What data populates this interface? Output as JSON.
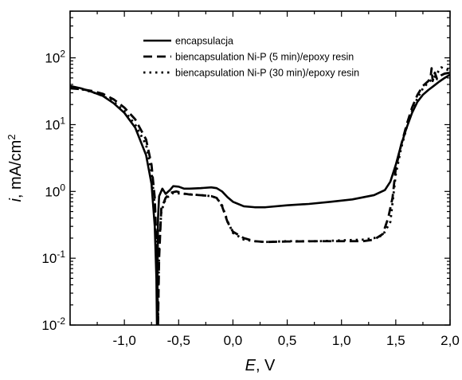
{
  "chart_data": {
    "type": "line",
    "title": "",
    "xlabel_var": "E",
    "xlabel_unit": ", V",
    "ylabel_var": "i",
    "ylabel_unit": ", mA/cm",
    "ylabel_sup": "2",
    "yscale": "log",
    "xlim": [
      -1.5,
      2.0
    ],
    "ylim": [
      0.01,
      500
    ],
    "grid": false,
    "legend_position": "top-center",
    "x_ticks": [
      {
        "value": -1.0,
        "label": "-1,0"
      },
      {
        "value": -0.5,
        "label": "-0,5"
      },
      {
        "value": 0.0,
        "label": "0,0"
      },
      {
        "value": 0.5,
        "label": "0,5"
      },
      {
        "value": 1.0,
        "label": "1,0"
      },
      {
        "value": 1.5,
        "label": "1,5"
      },
      {
        "value": 2.0,
        "label": "2,0"
      }
    ],
    "y_ticks": [
      {
        "value": 0.01,
        "exp": "-2"
      },
      {
        "value": 0.1,
        "exp": "-1"
      },
      {
        "value": 1,
        "exp": "0"
      },
      {
        "value": 10,
        "exp": "1"
      },
      {
        "value": 100,
        "exp": "2"
      }
    ],
    "series": [
      {
        "name": "encapsulacja",
        "style": "solid",
        "points": [
          [
            -1.5,
            38
          ],
          [
            -1.4,
            35
          ],
          [
            -1.3,
            31
          ],
          [
            -1.2,
            27
          ],
          [
            -1.1,
            21
          ],
          [
            -1.0,
            15
          ],
          [
            -0.9,
            9
          ],
          [
            -0.8,
            3.5
          ],
          [
            -0.75,
            1.3
          ],
          [
            -0.72,
            0.3
          ],
          [
            -0.705,
            0.05
          ],
          [
            -0.7,
            0.01
          ],
          [
            -0.695,
            0.05
          ],
          [
            -0.69,
            0.4
          ],
          [
            -0.68,
            0.85
          ],
          [
            -0.65,
            1.1
          ],
          [
            -0.62,
            0.92
          ],
          [
            -0.58,
            1.05
          ],
          [
            -0.55,
            1.2
          ],
          [
            -0.5,
            1.18
          ],
          [
            -0.45,
            1.1
          ],
          [
            -0.4,
            1.1
          ],
          [
            -0.3,
            1.12
          ],
          [
            -0.2,
            1.15
          ],
          [
            -0.15,
            1.12
          ],
          [
            -0.1,
            1.0
          ],
          [
            -0.05,
            0.82
          ],
          [
            0.0,
            0.7
          ],
          [
            0.1,
            0.6
          ],
          [
            0.2,
            0.58
          ],
          [
            0.3,
            0.58
          ],
          [
            0.5,
            0.62
          ],
          [
            0.7,
            0.65
          ],
          [
            0.9,
            0.7
          ],
          [
            1.1,
            0.76
          ],
          [
            1.3,
            0.88
          ],
          [
            1.4,
            1.05
          ],
          [
            1.45,
            1.4
          ],
          [
            1.5,
            2.5
          ],
          [
            1.55,
            5
          ],
          [
            1.6,
            9
          ],
          [
            1.65,
            15
          ],
          [
            1.7,
            22
          ],
          [
            1.75,
            28
          ],
          [
            1.8,
            33
          ],
          [
            1.85,
            38
          ],
          [
            1.9,
            44
          ],
          [
            1.95,
            50
          ],
          [
            2.0,
            56
          ]
        ]
      },
      {
        "name": "biencapsulation Ni-P (5 min)/epoxy resin",
        "style": "dashed",
        "points": [
          [
            -1.5,
            35
          ],
          [
            -1.4,
            34
          ],
          [
            -1.3,
            32
          ],
          [
            -1.2,
            29
          ],
          [
            -1.1,
            24
          ],
          [
            -1.0,
            18
          ],
          [
            -0.9,
            12
          ],
          [
            -0.8,
            6
          ],
          [
            -0.75,
            2.5
          ],
          [
            -0.72,
            0.8
          ],
          [
            -0.7,
            0.1
          ],
          [
            -0.69,
            0.01
          ],
          [
            -0.68,
            0.1
          ],
          [
            -0.66,
            0.55
          ],
          [
            -0.62,
            0.8
          ],
          [
            -0.58,
            0.95
          ],
          [
            -0.52,
            1.0
          ],
          [
            -0.45,
            0.93
          ],
          [
            -0.4,
            0.9
          ],
          [
            -0.3,
            0.88
          ],
          [
            -0.2,
            0.85
          ],
          [
            -0.15,
            0.8
          ],
          [
            -0.1,
            0.6
          ],
          [
            -0.05,
            0.35
          ],
          [
            0.0,
            0.25
          ],
          [
            0.1,
            0.2
          ],
          [
            0.2,
            0.18
          ],
          [
            0.3,
            0.175
          ],
          [
            0.5,
            0.178
          ],
          [
            0.8,
            0.18
          ],
          [
            1.0,
            0.18
          ],
          [
            1.2,
            0.18
          ],
          [
            1.3,
            0.19
          ],
          [
            1.38,
            0.23
          ],
          [
            1.43,
            0.4
          ],
          [
            1.47,
            0.8
          ],
          [
            1.5,
            2.2
          ],
          [
            1.55,
            5
          ],
          [
            1.6,
            10
          ],
          [
            1.65,
            18
          ],
          [
            1.7,
            28
          ],
          [
            1.75,
            38
          ],
          [
            1.8,
            45
          ],
          [
            1.82,
            50
          ],
          [
            1.83,
            70
          ],
          [
            1.84,
            45
          ],
          [
            1.86,
            60
          ],
          [
            1.88,
            48
          ],
          [
            1.92,
            55
          ],
          [
            1.95,
            58
          ],
          [
            2.0,
            60
          ]
        ]
      },
      {
        "name": "biencapsulation Ni-P (30 min)/epoxy resin",
        "style": "dotted",
        "points": [
          [
            -1.5,
            36
          ],
          [
            -1.4,
            34
          ],
          [
            -1.3,
            31
          ],
          [
            -1.2,
            27
          ],
          [
            -1.1,
            22
          ],
          [
            -1.0,
            16
          ],
          [
            -0.9,
            10
          ],
          [
            -0.8,
            5
          ],
          [
            -0.75,
            2
          ],
          [
            -0.72,
            0.6
          ],
          [
            -0.705,
            0.1
          ],
          [
            -0.69,
            0.012
          ],
          [
            -0.68,
            0.15
          ],
          [
            -0.66,
            0.5
          ],
          [
            -0.62,
            0.78
          ],
          [
            -0.55,
            0.95
          ],
          [
            -0.45,
            0.92
          ],
          [
            -0.3,
            0.88
          ],
          [
            -0.2,
            0.85
          ],
          [
            -0.15,
            0.8
          ],
          [
            -0.1,
            0.62
          ],
          [
            -0.05,
            0.36
          ],
          [
            0.0,
            0.24
          ],
          [
            0.1,
            0.19
          ],
          [
            0.2,
            0.18
          ],
          [
            0.3,
            0.175
          ],
          [
            0.5,
            0.18
          ],
          [
            0.8,
            0.18
          ],
          [
            1.0,
            0.185
          ],
          [
            1.2,
            0.19
          ],
          [
            1.3,
            0.2
          ],
          [
            1.38,
            0.22
          ],
          [
            1.45,
            0.35
          ],
          [
            1.5,
            1.8
          ],
          [
            1.55,
            4.5
          ],
          [
            1.6,
            9
          ],
          [
            1.65,
            16
          ],
          [
            1.7,
            25
          ],
          [
            1.75,
            35
          ],
          [
            1.8,
            43
          ],
          [
            1.85,
            50
          ],
          [
            1.88,
            58
          ],
          [
            1.9,
            66
          ],
          [
            1.92,
            72
          ],
          [
            1.95,
            68
          ],
          [
            2.0,
            65
          ]
        ]
      }
    ]
  }
}
